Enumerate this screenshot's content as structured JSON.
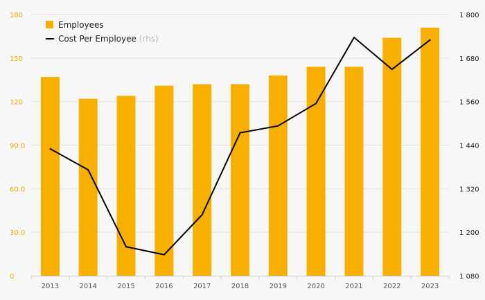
{
  "chart_data": {
    "type": "bar",
    "categories": [
      "2013",
      "2014",
      "2015",
      "2016",
      "2017",
      "2018",
      "2019",
      "2020",
      "2021",
      "2022",
      "2023"
    ],
    "series": [
      {
        "name": "Employees",
        "type": "bar",
        "axis": "left",
        "values": [
          137,
          122,
          124,
          131,
          132,
          132,
          138,
          144,
          144,
          164,
          171
        ]
      },
      {
        "name": "Cost Per Employee",
        "type": "line",
        "axis": "right",
        "values": [
          1430,
          1372,
          1160,
          1138,
          1248,
          1474,
          1493,
          1555,
          1737,
          1649,
          1730
        ]
      }
    ],
    "legend": {
      "employees": "Employees",
      "cost": "Cost Per Employee",
      "cost_suffix": "(rhs)",
      "position": "top-left"
    },
    "y_left": {
      "lim": [
        0,
        180
      ],
      "ticks": [
        "0",
        "30.0",
        "60.0",
        "90.0",
        "120",
        "150",
        "180"
      ]
    },
    "y_right": {
      "lim": [
        1080,
        1800
      ],
      "ticks": [
        "1 080",
        "1 200",
        "1 320",
        "1 440",
        "1 560",
        "1 680",
        "1 800"
      ]
    },
    "grid": true,
    "colors": {
      "bar": "#f7b000",
      "line": "#000000",
      "left_axis_text": "#f0a800",
      "right_axis_text": "#222222",
      "grid": "#e3e3e3"
    }
  }
}
